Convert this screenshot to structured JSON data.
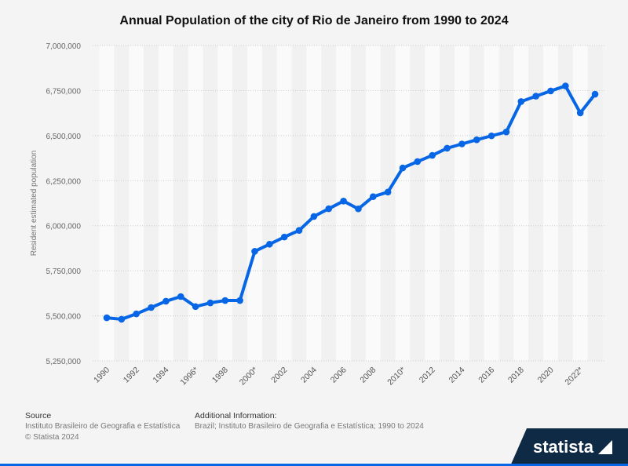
{
  "chart_data": {
    "type": "line",
    "title": "Annual Population of the city of Rio de Janeiro from 1990 to 2024",
    "xlabel": "",
    "ylabel": "Resident estimated population",
    "ylim": [
      5250000,
      7000000
    ],
    "yticks": [
      "7,000,000",
      "6,750,000",
      "6,500,000",
      "6,250,000",
      "6,000,000",
      "5,750,000",
      "5,500,000",
      "5,250,000"
    ],
    "ytick_values": [
      7000000,
      6750000,
      6500000,
      6250000,
      6000000,
      5750000,
      5500000,
      5250000
    ],
    "categories": [
      "1990",
      "1991",
      "1992",
      "1993",
      "1994",
      "1995",
      "1996*",
      "1997",
      "1998",
      "1999",
      "2000*",
      "2001",
      "2002",
      "2003",
      "2004",
      "2005",
      "2006",
      "2007",
      "2008",
      "2009",
      "2010*",
      "2011",
      "2012",
      "2013",
      "2014",
      "2015",
      "2016",
      "2017",
      "2018",
      "2019",
      "2020",
      "2021",
      "2022*",
      "2024"
    ],
    "xtick_labels": [
      "1990",
      "1992",
      "1994",
      "1996*",
      "1998",
      "2000*",
      "2002",
      "2004",
      "2006",
      "2008",
      "2010*",
      "2012",
      "2014",
      "2016",
      "2018",
      "2020",
      "2022*"
    ],
    "series": [
      {
        "values": [
          5489000,
          5481000,
          5511000,
          5546000,
          5581000,
          5607000,
          5551000,
          5572000,
          5585000,
          5585000,
          5857904,
          5897485,
          5937253,
          5974081,
          6051399,
          6094183,
          6136652,
          6093472,
          6161047,
          6186710,
          6320446,
          6355949,
          6390290,
          6429923,
          6453682,
          6476631,
          6498837,
          6520266,
          6688927,
          6718903,
          6747815,
          6775561,
          6625849,
          6729894
        ]
      }
    ],
    "color": "#0666e5",
    "grid": true
  },
  "footer": {
    "source_label": "Source",
    "source_lines": [
      "Instituto Brasileiro de Geografia e Estatística",
      "© Statista 2024"
    ],
    "info_label": "Additional Information:",
    "info_text": "Brazil; Instituto Brasileiro de Geografia e Estatística; 1990 to 2024"
  },
  "logo": "statista"
}
